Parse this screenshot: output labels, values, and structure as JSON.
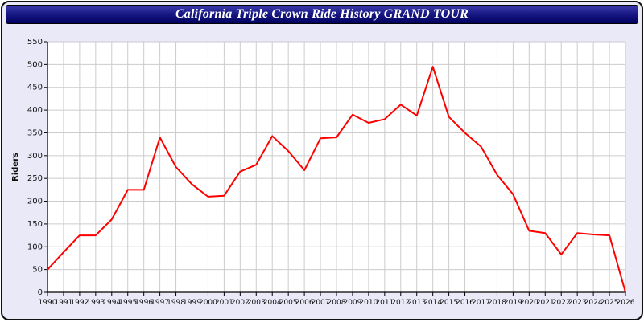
{
  "title": "California Triple Crown Ride History GRAND TOUR",
  "colors": {
    "page_background": "#e9e9f8",
    "titlebar_top": "#3a3aae",
    "titlebar_bottom": "#000060",
    "title_text": "#ffffff",
    "plot_background": "#ffffff",
    "grid": "#cccccc",
    "axis": "#000000",
    "line": "#ff0000"
  },
  "chart_data": {
    "type": "line",
    "title": "California Triple Crown Ride History GRAND TOUR",
    "xlabel": "",
    "ylabel": "Riders",
    "ylim": [
      0,
      550
    ],
    "ytick_step": 50,
    "grid": true,
    "legend_position": "none",
    "x": [
      1990,
      1991,
      1992,
      1993,
      1994,
      1995,
      1996,
      1997,
      1998,
      1999,
      2000,
      2001,
      2002,
      2003,
      2004,
      2005,
      2006,
      2007,
      2008,
      2009,
      2010,
      2011,
      2012,
      2013,
      2014,
      2015,
      2016,
      2017,
      2018,
      2019,
      2020,
      2021,
      2022,
      2023,
      2024,
      2025,
      2026
    ],
    "series": [
      {
        "name": "Riders",
        "values": [
          50,
          88,
          125,
          125,
          160,
          225,
          225,
          340,
          275,
          237,
          210,
          212,
          265,
          280,
          343,
          310,
          268,
          338,
          340,
          390,
          372,
          380,
          412,
          388,
          495,
          385,
          350,
          320,
          258,
          215,
          135,
          130,
          83,
          130,
          127,
          125,
          0
        ]
      }
    ]
  }
}
